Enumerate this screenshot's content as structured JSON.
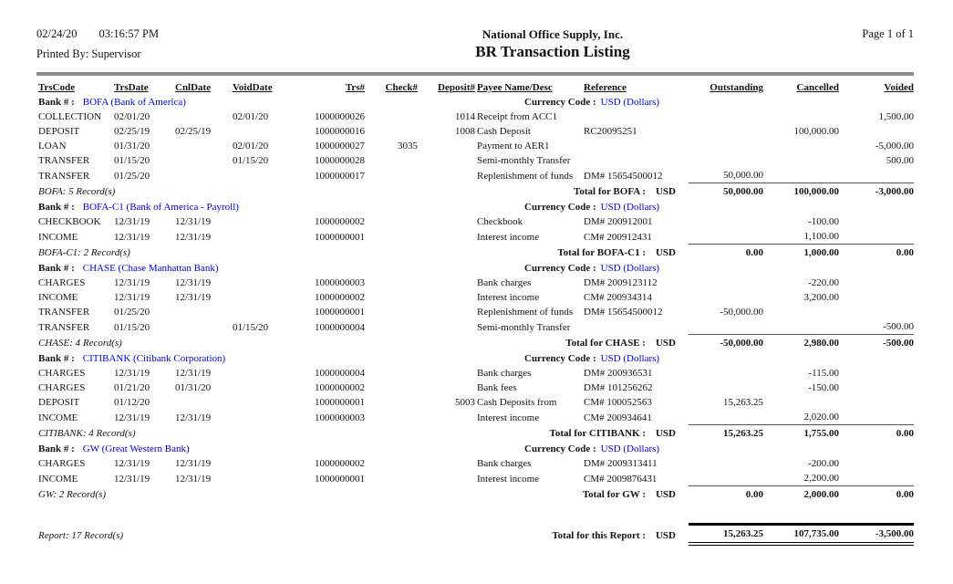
{
  "header": {
    "date": "02/24/20",
    "time": "03:16:57 PM",
    "printed_by": "Printed By: Supervisor",
    "company": "National Office Supply, Inc.",
    "title": "BR Transaction Listing",
    "page": "Page 1 of  1"
  },
  "labels": {
    "bank": "Bank # :",
    "currency": "Currency Code :",
    "usd": "USD"
  },
  "columns": [
    "TrsCode",
    "TrsDate",
    "CnlDate",
    "VoidDate",
    "Trs#",
    "Check#",
    "Deposit#",
    "Payee Name/Desc",
    "Reference",
    "Outstanding",
    "Cancelled",
    "Voided"
  ],
  "banks": [
    {
      "code": "BOFA",
      "name": "(Bank of America)",
      "currency": "USD (Dollars)",
      "rows": [
        {
          "code": "COLLECTION",
          "trsdate": "02/01/20",
          "cnldate": "",
          "voiddate": "02/01/20",
          "trs": "1000000026",
          "check": "",
          "deposit": "1014",
          "payee": "Receipt from ACC1",
          "reference": "",
          "outstanding": "",
          "cancelled": "",
          "voided": "1,500.00"
        },
        {
          "code": "DEPOSIT",
          "trsdate": "02/25/19",
          "cnldate": "02/25/19",
          "voiddate": "",
          "trs": "1000000016",
          "check": "",
          "deposit": "1008",
          "payee": "Cash Deposit",
          "reference": "RC20095251",
          "outstanding": "",
          "cancelled": "100,000.00",
          "voided": ""
        },
        {
          "code": "LOAN",
          "trsdate": "01/31/20",
          "cnldate": "",
          "voiddate": "02/01/20",
          "trs": "1000000027",
          "check": "3035",
          "deposit": "",
          "payee": "Payment to AER1",
          "reference": "",
          "outstanding": "",
          "cancelled": "",
          "voided": "-5,000.00"
        },
        {
          "code": "TRANSFER",
          "trsdate": "01/15/20",
          "cnldate": "",
          "voiddate": "01/15/20",
          "trs": "1000000028",
          "check": "",
          "deposit": "",
          "payee": "Semi-monthly Transfer",
          "reference": "",
          "outstanding": "",
          "cancelled": "",
          "voided": "500.00"
        },
        {
          "code": "TRANSFER",
          "trsdate": "01/25/20",
          "cnldate": "",
          "voiddate": "",
          "trs": "1000000017",
          "check": "",
          "deposit": "",
          "payee": "Replenishment of funds",
          "reference": "DM# 15654500012",
          "outstanding": "50,000.00",
          "cancelled": "",
          "voided": ""
        }
      ],
      "count": "BOFA: 5 Record(s)",
      "total_label": "Total for BOFA :",
      "totals": {
        "outstanding": "50,000.00",
        "cancelled": "100,000.00",
        "voided": "-3,000.00"
      }
    },
    {
      "code": "BOFA-C1",
      "name": "(Bank of America - Payroll)",
      "currency": "USD (Dollars)",
      "rows": [
        {
          "code": "CHECKBOOK",
          "trsdate": "12/31/19",
          "cnldate": "12/31/19",
          "voiddate": "",
          "trs": "1000000002",
          "check": "",
          "deposit": "",
          "payee": "Checkbook",
          "reference": "DM# 200912001",
          "outstanding": "",
          "cancelled": "-100.00",
          "voided": ""
        },
        {
          "code": "INCOME",
          "trsdate": "12/31/19",
          "cnldate": "12/31/19",
          "voiddate": "",
          "trs": "1000000001",
          "check": "",
          "deposit": "",
          "payee": "Interest income",
          "reference": "CM# 200912431",
          "outstanding": "",
          "cancelled": "1,100.00",
          "voided": ""
        }
      ],
      "count": "BOFA-C1: 2 Record(s)",
      "total_label": "Total for BOFA-C1 :",
      "totals": {
        "outstanding": "0.00",
        "cancelled": "1,000.00",
        "voided": "0.00"
      }
    },
    {
      "code": "CHASE",
      "name": "(Chase Manhattan Bank)",
      "currency": "USD (Dollars)",
      "rows": [
        {
          "code": "CHARGES",
          "trsdate": "12/31/19",
          "cnldate": "12/31/19",
          "voiddate": "",
          "trs": "1000000003",
          "check": "",
          "deposit": "",
          "payee": "Bank charges",
          "reference": "DM# 2009123112",
          "outstanding": "",
          "cancelled": "-220.00",
          "voided": ""
        },
        {
          "code": "INCOME",
          "trsdate": "12/31/19",
          "cnldate": "12/31/19",
          "voiddate": "",
          "trs": "1000000002",
          "check": "",
          "deposit": "",
          "payee": "Interest income",
          "reference": "CM# 200934314",
          "outstanding": "",
          "cancelled": "3,200.00",
          "voided": ""
        },
        {
          "code": "TRANSFER",
          "trsdate": "01/25/20",
          "cnldate": "",
          "voiddate": "",
          "trs": "1000000001",
          "check": "",
          "deposit": "",
          "payee": "Replenishment of funds",
          "reference": "DM# 15654500012",
          "outstanding": "-50,000.00",
          "cancelled": "",
          "voided": ""
        },
        {
          "code": "TRANSFER",
          "trsdate": "01/15/20",
          "cnldate": "",
          "voiddate": "01/15/20",
          "trs": "1000000004",
          "check": "",
          "deposit": "",
          "payee": "Semi-monthly Transfer",
          "reference": "",
          "outstanding": "",
          "cancelled": "",
          "voided": "-500.00"
        }
      ],
      "count": "CHASE: 4 Record(s)",
      "total_label": "Total for CHASE :",
      "totals": {
        "outstanding": "-50,000.00",
        "cancelled": "2,980.00",
        "voided": "-500.00"
      }
    },
    {
      "code": "CITIBANK",
      "name": "(Citibank Corporation)",
      "currency": "USD (Dollars)",
      "rows": [
        {
          "code": "CHARGES",
          "trsdate": "12/31/19",
          "cnldate": "12/31/19",
          "voiddate": "",
          "trs": "1000000004",
          "check": "",
          "deposit": "",
          "payee": "Bank charges",
          "reference": "DM# 200936531",
          "outstanding": "",
          "cancelled": "-115.00",
          "voided": ""
        },
        {
          "code": "CHARGES",
          "trsdate": "01/21/20",
          "cnldate": "01/31/20",
          "voiddate": "",
          "trs": "1000000002",
          "check": "",
          "deposit": "",
          "payee": "Bank fees",
          "reference": "DM# 101256262",
          "outstanding": "",
          "cancelled": "-150.00",
          "voided": ""
        },
        {
          "code": "DEPOSIT",
          "trsdate": "01/12/20",
          "cnldate": "",
          "voiddate": "",
          "trs": "1000000001",
          "check": "",
          "deposit": "5003",
          "payee": "Cash Deposits from",
          "reference": "CM# 100052563",
          "outstanding": "15,263.25",
          "cancelled": "",
          "voided": ""
        },
        {
          "code": "INCOME",
          "trsdate": "12/31/19",
          "cnldate": "12/31/19",
          "voiddate": "",
          "trs": "1000000003",
          "check": "",
          "deposit": "",
          "payee": "Interest income",
          "reference": "CM# 200934641",
          "outstanding": "",
          "cancelled": "2,020.00",
          "voided": ""
        }
      ],
      "count": "CITIBANK: 4 Record(s)",
      "total_label": "Total for CITIBANK :",
      "totals": {
        "outstanding": "15,263.25",
        "cancelled": "1,755.00",
        "voided": "0.00"
      }
    },
    {
      "code": "GW",
      "name": "(Great Western Bank)",
      "currency": "USD (Dollars)",
      "rows": [
        {
          "code": "CHARGES",
          "trsdate": "12/31/19",
          "cnldate": "12/31/19",
          "voiddate": "",
          "trs": "1000000002",
          "check": "",
          "deposit": "",
          "payee": "Bank charges",
          "reference": "DM# 2009313411",
          "outstanding": "",
          "cancelled": "-200.00",
          "voided": ""
        },
        {
          "code": "INCOME",
          "trsdate": "12/31/19",
          "cnldate": "12/31/19",
          "voiddate": "",
          "trs": "1000000001",
          "check": "",
          "deposit": "",
          "payee": "Interest income",
          "reference": "CM# 2009876431",
          "outstanding": "",
          "cancelled": "2,200.00",
          "voided": ""
        }
      ],
      "count": "GW: 2 Record(s)",
      "total_label": "Total for GW :",
      "totals": {
        "outstanding": "0.00",
        "cancelled": "2,000.00",
        "voided": "0.00"
      }
    }
  ],
  "report": {
    "count": "Report: 17 Record(s)",
    "total_label": "Total for this Report :",
    "totals": {
      "outstanding": "15,263.25",
      "cancelled": "107,735.00",
      "voided": "-3,500.00"
    }
  },
  "colors": {
    "accent_blue": "#0000EE",
    "divider_gray": "#8B8B8B"
  }
}
